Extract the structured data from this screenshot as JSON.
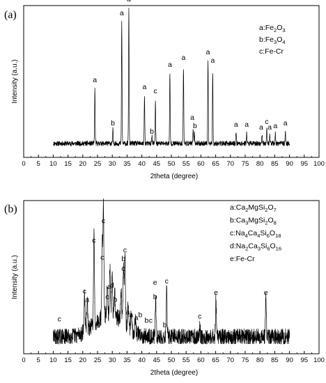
{
  "chart_data": [
    {
      "type": "line",
      "panel_label": "(a)",
      "xlabel": "2theta (degree)",
      "ylabel": "Intensity (a.u.)",
      "xlim": [
        0,
        100
      ],
      "xticks": [
        0,
        5,
        10,
        15,
        20,
        25,
        30,
        35,
        40,
        45,
        50,
        55,
        60,
        65,
        70,
        75,
        80,
        85,
        90,
        95,
        100
      ],
      "legend_position": "top-right",
      "legend": [
        {
          "key": "a",
          "sep": ":",
          "parts": [
            [
              "Fe",
              ""
            ],
            [
              "2",
              "sub"
            ],
            [
              "O",
              ""
            ],
            [
              "3",
              "sub"
            ]
          ]
        },
        {
          "key": "b",
          "sep": ":",
          "parts": [
            [
              "Fe",
              ""
            ],
            [
              "3",
              "sub"
            ],
            [
              "O",
              ""
            ],
            [
              "4",
              "sub"
            ]
          ]
        },
        {
          "key": "c",
          "sep": ":",
          "parts": [
            [
              "Fe-Cr",
              ""
            ]
          ]
        }
      ],
      "pattern": {
        "x_range": [
          10,
          90
        ],
        "baseline": 0.03,
        "noise": 0.018,
        "width": 0.14,
        "peaks": [
          [
            24.1,
            0.39
          ],
          [
            30.2,
            0.1
          ],
          [
            33.2,
            0.87
          ],
          [
            35.6,
            0.96
          ],
          [
            40.9,
            0.34
          ],
          [
            43.4,
            0.06
          ],
          [
            44.6,
            0.3
          ],
          [
            49.5,
            0.5
          ],
          [
            54.1,
            0.55
          ],
          [
            57.4,
            0.1
          ],
          [
            57.8,
            0.08
          ],
          [
            62.4,
            0.58
          ],
          [
            64.0,
            0.52
          ],
          [
            71.9,
            0.08
          ],
          [
            75.5,
            0.08
          ],
          [
            80.7,
            0.07
          ],
          [
            82.3,
            0.11
          ],
          [
            83.3,
            0.07
          ],
          [
            85.2,
            0.07
          ],
          [
            88.6,
            0.08
          ]
        ]
      },
      "peak_labels": [
        {
          "x": 24.1,
          "y": 0.47,
          "text": "a"
        },
        {
          "x": 30.2,
          "y": 0.16,
          "text": "b"
        },
        {
          "x": 33.2,
          "y": 0.95,
          "text": "a"
        },
        {
          "x": 35.6,
          "y": 1.05,
          "text": "a"
        },
        {
          "x": 40.9,
          "y": 0.42,
          "text": "a"
        },
        {
          "x": 43.4,
          "y": 0.1,
          "text": "b"
        },
        {
          "x": 44.6,
          "y": 0.39,
          "text": "c"
        },
        {
          "x": 49.5,
          "y": 0.58,
          "text": "a"
        },
        {
          "x": 54.1,
          "y": 0.63,
          "text": "a"
        },
        {
          "x": 57.1,
          "y": 0.2,
          "text": "a"
        },
        {
          "x": 58.0,
          "y": 0.14,
          "text": "b"
        },
        {
          "x": 62.4,
          "y": 0.67,
          "text": "a"
        },
        {
          "x": 64.0,
          "y": 0.61,
          "text": "a"
        },
        {
          "x": 71.9,
          "y": 0.15,
          "text": "a"
        },
        {
          "x": 75.5,
          "y": 0.15,
          "text": "a"
        },
        {
          "x": 80.4,
          "y": 0.13,
          "text": "a"
        },
        {
          "x": 82.3,
          "y": 0.17,
          "text": "c"
        },
        {
          "x": 83.3,
          "y": 0.13,
          "text": "a"
        },
        {
          "x": 85.2,
          "y": 0.14,
          "text": "a"
        },
        {
          "x": 88.6,
          "y": 0.16,
          "text": "a"
        }
      ]
    },
    {
      "type": "line",
      "panel_label": "(b)",
      "xlabel": "2theta (degree)",
      "ylabel": "Intensity (a.u.)",
      "xlim": [
        0,
        100
      ],
      "xticks": [
        0,
        5,
        10,
        15,
        20,
        25,
        30,
        35,
        40,
        45,
        50,
        55,
        60,
        65,
        70,
        75,
        80,
        85,
        90,
        95,
        100
      ],
      "legend_position": "top-right",
      "legend": [
        {
          "key": "a",
          "sep": ":",
          "parts": [
            [
              "Ca",
              ""
            ],
            [
              "2",
              "sub"
            ],
            [
              "MgSi",
              ""
            ],
            [
              "2",
              "sub"
            ],
            [
              "O",
              ""
            ],
            [
              "7",
              "sub"
            ]
          ]
        },
        {
          "key": "b",
          "sep": ":",
          "parts": [
            [
              "Ca",
              ""
            ],
            [
              "3",
              "sub"
            ],
            [
              "MgSi",
              ""
            ],
            [
              "2",
              "sub"
            ],
            [
              "O",
              ""
            ],
            [
              "8",
              "sub"
            ]
          ]
        },
        {
          "key": "c",
          "sep": ":",
          "parts": [
            [
              "Na",
              ""
            ],
            [
              "4",
              "sub"
            ],
            [
              "Ca",
              ""
            ],
            [
              "4",
              "sub"
            ],
            [
              "Si",
              ""
            ],
            [
              "6",
              "sub"
            ],
            [
              "O",
              ""
            ],
            [
              "18",
              "sub"
            ]
          ]
        },
        {
          "key": "d",
          "sep": ":",
          "parts": [
            [
              "Na",
              ""
            ],
            [
              "2",
              "sub"
            ],
            [
              "Ca",
              ""
            ],
            [
              "3",
              "sub"
            ],
            [
              "Si",
              ""
            ],
            [
              "6",
              "sub"
            ],
            [
              "O",
              ""
            ],
            [
              "16",
              "sub"
            ]
          ]
        },
        {
          "key": "e",
          "sep": ":",
          "parts": [
            [
              "Fe-Cr",
              ""
            ]
          ]
        }
      ],
      "pattern": {
        "x_range": [
          10,
          90
        ],
        "baseline": 0.05,
        "noise": 0.06,
        "width": 0.22,
        "hump": {
          "center": 29,
          "width": 7,
          "height": 0.16
        },
        "peaks": [
          [
            20.6,
            0.28
          ],
          [
            21.5,
            0.22
          ],
          [
            23.8,
            0.63
          ],
          [
            26.6,
            0.52
          ],
          [
            27.0,
            0.78
          ],
          [
            28.3,
            0.25
          ],
          [
            29.2,
            0.32
          ],
          [
            29.9,
            0.32
          ],
          [
            30.8,
            0.19
          ],
          [
            33.0,
            0.23
          ],
          [
            33.8,
            0.44
          ],
          [
            34.3,
            0.51
          ],
          [
            35.3,
            0.15
          ],
          [
            36.4,
            0.13
          ],
          [
            37.8,
            0.1
          ],
          [
            44.7,
            0.25
          ],
          [
            48.4,
            0.34
          ],
          [
            59.6,
            0.08
          ],
          [
            65.1,
            0.27
          ],
          [
            82.0,
            0.27
          ]
        ]
      },
      "peak_labels": [
        {
          "x": 12.1,
          "y": 0.16,
          "text": "c"
        },
        {
          "x": 20.6,
          "y": 0.36,
          "text": "c"
        },
        {
          "x": 21.5,
          "y": 0.3,
          "text": "a"
        },
        {
          "x": 23.8,
          "y": 0.72,
          "text": "c"
        },
        {
          "x": 26.6,
          "y": 0.6,
          "text": "c"
        },
        {
          "x": 27.0,
          "y": 0.86,
          "text": "c"
        },
        {
          "x": 28.3,
          "y": 0.32,
          "text": "c"
        },
        {
          "x": 29.0,
          "y": 0.39,
          "text": "a"
        },
        {
          "x": 29.9,
          "y": 0.4,
          "text": "d"
        },
        {
          "x": 31.0,
          "y": 0.3,
          "text": "b"
        },
        {
          "x": 32.2,
          "y": 0.21,
          "text": "b"
        },
        {
          "x": 33.7,
          "y": 0.52,
          "text": "c"
        },
        {
          "x": 33.8,
          "y": 0.59,
          "text": "b"
        },
        {
          "x": 34.3,
          "y": 0.65,
          "text": "c"
        },
        {
          "x": 35.2,
          "y": 0.21,
          "text": "a"
        },
        {
          "x": 36.4,
          "y": 0.19,
          "text": "a"
        },
        {
          "x": 38.1,
          "y": 0.17,
          "text": "a"
        },
        {
          "x": 39.5,
          "y": 0.19,
          "text": "b"
        },
        {
          "x": 41.6,
          "y": 0.15,
          "text": "b"
        },
        {
          "x": 43.0,
          "y": 0.15,
          "text": "c"
        },
        {
          "x": 44.5,
          "y": 0.42,
          "text": "e"
        },
        {
          "x": 44.5,
          "y": 0.32,
          "text": "b"
        },
        {
          "x": 47.8,
          "y": 0.12,
          "text": "b"
        },
        {
          "x": 48.4,
          "y": 0.43,
          "text": "c"
        },
        {
          "x": 59.6,
          "y": 0.18,
          "text": "c"
        },
        {
          "x": 65.1,
          "y": 0.35,
          "text": "e"
        },
        {
          "x": 82.0,
          "y": 0.35,
          "text": "e"
        }
      ]
    }
  ]
}
